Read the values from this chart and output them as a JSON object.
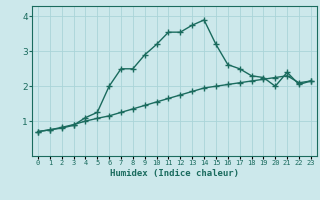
{
  "xlabel": "Humidex (Indice chaleur)",
  "ylabel": "",
  "background_color": "#cce8eb",
  "line_color": "#1a6b5e",
  "grid_color": "#aad4d8",
  "x_values": [
    0,
    1,
    2,
    3,
    4,
    5,
    6,
    7,
    8,
    9,
    10,
    11,
    12,
    13,
    14,
    15,
    16,
    17,
    18,
    19,
    20,
    21,
    22,
    23
  ],
  "line1_y": [
    0.7,
    0.75,
    0.8,
    0.88,
    1.1,
    1.25,
    2.0,
    2.5,
    2.5,
    2.9,
    3.2,
    3.55,
    3.55,
    3.75,
    3.9,
    3.2,
    2.62,
    2.5,
    2.3,
    2.25,
    2.0,
    2.4,
    2.05,
    2.15
  ],
  "line2_y": [
    0.7,
    0.75,
    0.82,
    0.9,
    1.0,
    1.08,
    1.15,
    1.25,
    1.35,
    1.45,
    1.55,
    1.65,
    1.75,
    1.85,
    1.95,
    2.0,
    2.05,
    2.1,
    2.15,
    2.2,
    2.25,
    2.3,
    2.1,
    2.15
  ],
  "ylim": [
    0,
    4.3
  ],
  "xlim": [
    -0.5,
    23.5
  ],
  "yticks": [
    1,
    2,
    3,
    4
  ],
  "xtick_labels": [
    "0",
    "1",
    "2",
    "3",
    "4",
    "5",
    "6",
    "7",
    "8",
    "9",
    "10",
    "11",
    "12",
    "13",
    "14",
    "15",
    "16",
    "17",
    "18",
    "19",
    "20",
    "21",
    "22",
    "23"
  ],
  "marker": "+",
  "markersize": 4,
  "linewidth": 1.0,
  "markeredgewidth": 1.0
}
